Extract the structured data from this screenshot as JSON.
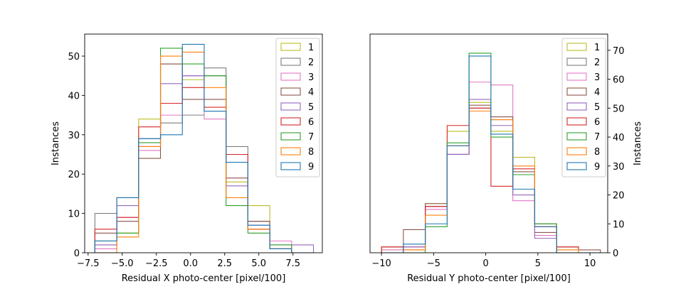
{
  "chart_data": [
    {
      "type": "histogram",
      "xlabel": "Residual X photo-center [pixel/100]",
      "ylabel": "Instances",
      "ylabel_side": "left",
      "xlim": [
        -7.75,
        9.65
      ],
      "ylim": [
        0,
        55.6
      ],
      "xticks": [
        -7.5,
        -5.0,
        -2.5,
        0.0,
        2.5,
        5.0,
        7.5
      ],
      "xtick_labels": [
        "−7.5",
        "−5.0",
        "−2.5",
        "0.0",
        "2.5",
        "5.0",
        "7.5"
      ],
      "yticks": [
        0,
        10,
        20,
        30,
        40,
        50
      ],
      "yticks_labels": [
        "0",
        "10",
        "20",
        "30",
        "40",
        "50"
      ],
      "legend_position": "top-right",
      "bin_edges": [
        -7.0,
        -5.4,
        -3.8,
        -2.2,
        -0.6,
        1.0,
        2.6,
        4.2,
        5.8,
        7.4,
        9.0
      ],
      "series": [
        {
          "name": "1",
          "color": "#bcbd22",
          "counts": [
            2,
            5,
            34,
            48,
            44,
            45,
            18,
            12,
            1,
            0
          ]
        },
        {
          "name": "2",
          "color": "#7f7f7f",
          "counts": [
            10,
            14,
            29,
            33,
            35,
            47,
            27,
            8,
            1,
            0
          ]
        },
        {
          "name": "3",
          "color": "#e377c2",
          "counts": [
            1,
            9,
            26,
            35,
            45,
            34,
            19,
            6,
            3,
            0
          ]
        },
        {
          "name": "4",
          "color": "#8c564b",
          "counts": [
            5,
            8,
            24,
            48,
            39,
            39,
            19,
            8,
            1,
            0
          ]
        },
        {
          "name": "5",
          "color": "#9467bd",
          "counts": [
            2,
            12,
            27,
            43,
            45,
            45,
            17,
            7,
            2,
            2
          ]
        },
        {
          "name": "6",
          "color": "#d62728",
          "counts": [
            6,
            9,
            32,
            38,
            42,
            37,
            25,
            6,
            1,
            0
          ]
        },
        {
          "name": "7",
          "color": "#2ca02c",
          "counts": [
            3,
            5,
            28,
            52,
            48,
            45,
            12,
            5,
            2,
            0
          ]
        },
        {
          "name": "8",
          "color": "#ff7f0e",
          "counts": [
            0,
            4,
            27,
            50,
            51,
            42,
            14,
            6,
            1,
            0
          ]
        },
        {
          "name": "9",
          "color": "#1f77b4",
          "counts": [
            3,
            14,
            29,
            30,
            53,
            36,
            23,
            7,
            1,
            0
          ]
        }
      ]
    },
    {
      "type": "histogram",
      "xlabel": "Residual Y photo-center [pixel/100]",
      "ylabel": "Instances",
      "ylabel_side": "right",
      "xlim": [
        -11.1,
        11.7
      ],
      "ylim": [
        0,
        75.6
      ],
      "xticks": [
        -10,
        -5,
        0,
        5,
        10
      ],
      "xtick_labels": [
        "−10",
        "−5",
        "0",
        "5",
        "10"
      ],
      "yticks": [
        0,
        10,
        20,
        30,
        40,
        50,
        60,
        70
      ],
      "yticks_labels": [
        "0",
        "10",
        "20",
        "30",
        "40",
        "50",
        "60",
        "70"
      ],
      "legend_position": "top-left of right axis",
      "bin_edges": [
        -10.0,
        -7.9,
        -5.8,
        -3.7,
        -1.6,
        0.5,
        2.6,
        4.7,
        6.8,
        8.9,
        11.0
      ],
      "series": [
        {
          "name": "1",
          "color": "#bcbd22",
          "counts": [
            1,
            2,
            17,
            42,
            52,
            42,
            33,
            10,
            1,
            0
          ]
        },
        {
          "name": "2",
          "color": "#7f7f7f",
          "counts": [
            0,
            2,
            16,
            37,
            50,
            46,
            27,
            10,
            0,
            0
          ]
        },
        {
          "name": "3",
          "color": "#e377c2",
          "counts": [
            1,
            2,
            15,
            34,
            59,
            58,
            18,
            6,
            0,
            0
          ]
        },
        {
          "name": "4",
          "color": "#8c564b",
          "counts": [
            2,
            8,
            17,
            34,
            51,
            47,
            28,
            7,
            2,
            1
          ]
        },
        {
          "name": "5",
          "color": "#9467bd",
          "counts": [
            0,
            2,
            16,
            34,
            53,
            44,
            20,
            5,
            0,
            0
          ]
        },
        {
          "name": "6",
          "color": "#d62728",
          "counts": [
            2,
            1,
            16,
            44,
            50,
            23,
            29,
            9,
            2,
            0
          ]
        },
        {
          "name": "7",
          "color": "#2ca02c",
          "counts": [
            0,
            0,
            9,
            38,
            69,
            40,
            27,
            10,
            0,
            0
          ]
        },
        {
          "name": "8",
          "color": "#ff7f0e",
          "counts": [
            0,
            1,
            13,
            37,
            49,
            46,
            30,
            9,
            1,
            0
          ]
        },
        {
          "name": "9",
          "color": "#1f77b4",
          "counts": [
            0,
            3,
            10,
            37,
            68,
            41,
            22,
            9,
            0,
            0
          ]
        }
      ]
    }
  ]
}
